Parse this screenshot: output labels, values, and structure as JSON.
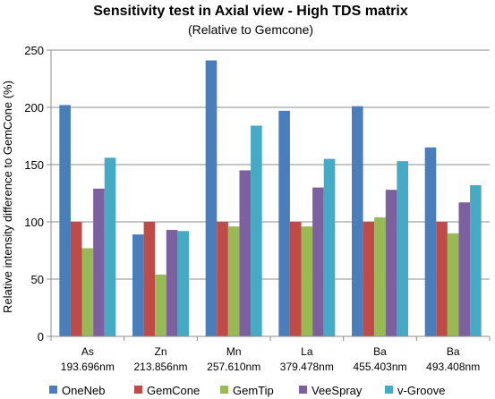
{
  "chart_data": {
    "type": "bar",
    "title": "Sensitivity test in Axial view - High TDS matrix",
    "subtitle": "(Relative to Gemcone)",
    "xlabel": "",
    "ylabel": "Relative intensity difference to GemCone (%)",
    "ylim": [
      0,
      250
    ],
    "yticks": [
      0,
      50,
      100,
      150,
      200,
      250
    ],
    "grid": true,
    "legend_position": "bottom",
    "categories": [
      {
        "element": "As",
        "wavelength": "193.696nm"
      },
      {
        "element": "Zn",
        "wavelength": "213.856nm"
      },
      {
        "element": "Mn",
        "wavelength": "257.610nm"
      },
      {
        "element": "La",
        "wavelength": "379.478nm"
      },
      {
        "element": "Ba",
        "wavelength": "455.403nm"
      },
      {
        "element": "Ba",
        "wavelength": "493.408nm"
      }
    ],
    "series": [
      {
        "name": "OneNeb",
        "color": "#4a7ebb",
        "values": [
          202,
          89,
          241,
          197,
          201,
          165
        ]
      },
      {
        "name": "GemCone",
        "color": "#be4b48",
        "values": [
          100,
          100,
          100,
          100,
          100,
          100
        ]
      },
      {
        "name": "GemTip",
        "color": "#98b954",
        "values": [
          77,
          54,
          96,
          96,
          104,
          90
        ]
      },
      {
        "name": "VeeSpray",
        "color": "#7d60a0",
        "values": [
          129,
          93,
          145,
          130,
          128,
          117
        ]
      },
      {
        "name": "v-Groove",
        "color": "#46aac5",
        "values": [
          156,
          92,
          184,
          155,
          153,
          132
        ]
      }
    ]
  }
}
